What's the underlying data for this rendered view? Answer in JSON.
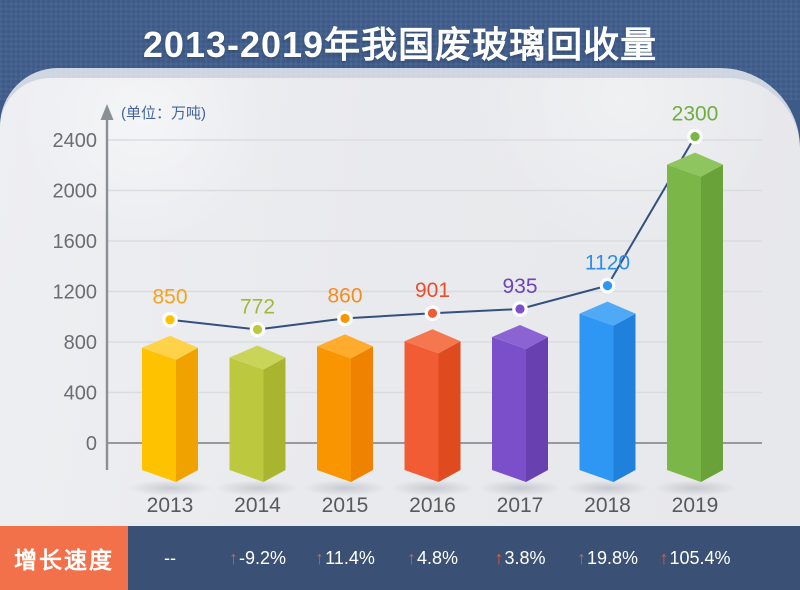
{
  "title": "2013-2019年我国废玻璃回收量",
  "unit_label": "(单位：万吨)",
  "chart_data": {
    "type": "bar",
    "categories": [
      "2013",
      "2014",
      "2015",
      "2016",
      "2017",
      "2018",
      "2019"
    ],
    "series": [
      {
        "name": "废玻璃回收量(万吨)",
        "type": "bar-with-line-markers",
        "values": [
          850,
          772,
          860,
          901,
          935,
          1120,
          2300
        ]
      },
      {
        "name": "增长速度",
        "type": "table-row",
        "values": [
          "--",
          "-9.2%",
          "11.4%",
          "4.8%",
          "3.8%",
          "19.8%",
          "105.4%"
        ]
      }
    ],
    "title": "2013-2019年我国废玻璃回收量",
    "ylabel": "(单位：万吨)",
    "ylim": [
      0,
      2400
    ],
    "yticks": [
      0,
      400,
      800,
      1200,
      1600,
      2000,
      2400
    ],
    "grid": true,
    "legend_position": "none",
    "line_color": "#33517E",
    "bar_palette": [
      {
        "front": "#FFC200",
        "side": "#F0A300",
        "top": "#FFD24A",
        "label": "#F5A31C"
      },
      {
        "front": "#BCC93F",
        "side": "#A9B42F",
        "top": "#C9D558",
        "label": "#A4B63A"
      },
      {
        "front": "#F99500",
        "side": "#EF8300",
        "top": "#FFAB2E",
        "label": "#F78C1E"
      },
      {
        "front": "#F25C34",
        "side": "#E04A1F",
        "top": "#F5774F",
        "label": "#E94E2B"
      },
      {
        "front": "#7B4FC9",
        "side": "#6940B0",
        "top": "#8C63D3",
        "label": "#6B44B8"
      },
      {
        "front": "#2D97F3",
        "side": "#2081DC",
        "top": "#4FA9F6",
        "label": "#2E8FE8"
      },
      {
        "front": "#7AB648",
        "side": "#68A238",
        "top": "#8FC55E",
        "label": "#6FAE3E"
      }
    ]
  },
  "growth_row": {
    "label": "增长速度",
    "arrow_glyph": "↑",
    "arrow_color": "#EA5B31",
    "values": [
      "--",
      "-9.2%",
      "11.4%",
      "4.8%",
      "3.8%",
      "19.8%",
      "105.4%"
    ]
  },
  "colors": {
    "header_bg": "#3D5A88",
    "card_bg": "#E9EAED",
    "row_bg": "#3A5175",
    "row_label_bg": "#F2714B",
    "axis": "#8A8F96",
    "gridline": "#DBDCE0",
    "tick_text": "#6B6D71",
    "year_text": "#58595B"
  }
}
